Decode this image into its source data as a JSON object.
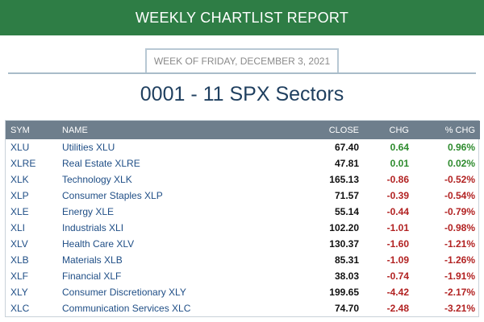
{
  "banner": {
    "title": "WEEKLY CHARTLIST REPORT"
  },
  "week": {
    "label": "WEEK OF FRIDAY, DECEMBER 3, 2021"
  },
  "report": {
    "title": "0001 - 11 SPX Sectors"
  },
  "colors": {
    "banner": "#2e7d45",
    "header": "#6e7e8c",
    "link": "#1f4e86",
    "positive": "#2e8b2e",
    "negative": "#b22222"
  },
  "table": {
    "headers": {
      "sym": "SYM",
      "name": "NAME",
      "close": "CLOSE",
      "chg": "CHG",
      "pct": "% CHG"
    },
    "rows": [
      {
        "sym": "XLU",
        "name": "Utilities XLU",
        "close": "67.40",
        "chg": "0.64",
        "pct": "0.96%",
        "dir": "pos"
      },
      {
        "sym": "XLRE",
        "name": "Real Estate XLRE",
        "close": "47.81",
        "chg": "0.01",
        "pct": "0.02%",
        "dir": "pos"
      },
      {
        "sym": "XLK",
        "name": "Technology XLK",
        "close": "165.13",
        "chg": "-0.86",
        "pct": "-0.52%",
        "dir": "neg"
      },
      {
        "sym": "XLP",
        "name": "Consumer Staples XLP",
        "close": "71.57",
        "chg": "-0.39",
        "pct": "-0.54%",
        "dir": "neg"
      },
      {
        "sym": "XLE",
        "name": "Energy XLE",
        "close": "55.14",
        "chg": "-0.44",
        "pct": "-0.79%",
        "dir": "neg"
      },
      {
        "sym": "XLI",
        "name": "Industrials XLI",
        "close": "102.20",
        "chg": "-1.01",
        "pct": "-0.98%",
        "dir": "neg"
      },
      {
        "sym": "XLV",
        "name": "Health Care XLV",
        "close": "130.37",
        "chg": "-1.60",
        "pct": "-1.21%",
        "dir": "neg"
      },
      {
        "sym": "XLB",
        "name": "Materials XLB",
        "close": "85.31",
        "chg": "-1.09",
        "pct": "-1.26%",
        "dir": "neg"
      },
      {
        "sym": "XLF",
        "name": "Financial XLF",
        "close": "38.03",
        "chg": "-0.74",
        "pct": "-1.91%",
        "dir": "neg"
      },
      {
        "sym": "XLY",
        "name": "Consumer Discretionary XLY",
        "close": "199.65",
        "chg": "-4.42",
        "pct": "-2.17%",
        "dir": "neg"
      },
      {
        "sym": "XLC",
        "name": "Communication Services XLC",
        "close": "74.70",
        "chg": "-2.48",
        "pct": "-3.21%",
        "dir": "neg"
      }
    ]
  }
}
